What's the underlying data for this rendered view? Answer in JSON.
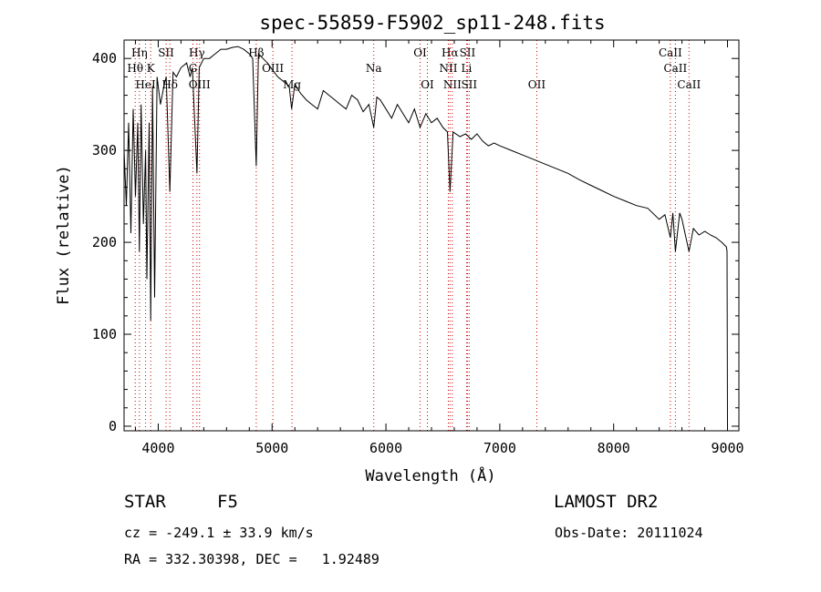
{
  "chart_data": {
    "type": "line",
    "title": "spec-55859-F5902_sp11-248.fits",
    "xlabel": "Wavelength (Å)",
    "ylabel": "Flux (relative)",
    "xlim": [
      3700,
      9100
    ],
    "ylim": [
      -5,
      420
    ],
    "xticks": [
      4000,
      5000,
      6000,
      7000,
      8000,
      9000
    ],
    "yticks": [
      0,
      100,
      200,
      300,
      400
    ],
    "grid": false,
    "line_color": "#000000",
    "marker_color": "#cc0000",
    "series": [
      {
        "x": [
          3700,
          3720,
          3740,
          3760,
          3780,
          3800,
          3820,
          3835,
          3850,
          3870,
          3889,
          3900,
          3920,
          3934,
          3950,
          3968,
          3990,
          4020,
          4050,
          4070,
          4102,
          4130,
          4160,
          4200,
          4250,
          4280,
          4300,
          4340,
          4360,
          4400,
          4450,
          4500,
          4550,
          4600,
          4650,
          4700,
          4750,
          4800,
          4830,
          4861,
          4880,
          4920,
          4960,
          5000,
          5050,
          5100,
          5150,
          5172,
          5200,
          5250,
          5300,
          5350,
          5400,
          5450,
          5500,
          5550,
          5600,
          5650,
          5700,
          5750,
          5800,
          5850,
          5893,
          5920,
          5950,
          6000,
          6050,
          6100,
          6150,
          6200,
          6250,
          6300,
          6350,
          6400,
          6450,
          6500,
          6540,
          6563,
          6590,
          6650,
          6700,
          6750,
          6800,
          6850,
          6900,
          6950,
          7000,
          7100,
          7200,
          7300,
          7400,
          7500,
          7600,
          7700,
          7800,
          7900,
          8000,
          8100,
          8200,
          8300,
          8400,
          8450,
          8498,
          8520,
          8542,
          8580,
          8600,
          8662,
          8700,
          8750,
          8800,
          8850,
          8900,
          8950,
          8990,
          8996,
          9000
        ],
        "y": [
          300,
          240,
          330,
          210,
          345,
          250,
          330,
          190,
          350,
          220,
          300,
          160,
          330,
          115,
          370,
          140,
          380,
          350,
          370,
          380,
          255,
          385,
          380,
          390,
          395,
          380,
          390,
          275,
          390,
          400,
          400,
          405,
          410,
          410,
          412,
          413,
          410,
          405,
          400,
          283,
          405,
          400,
          395,
          388,
          380,
          375,
          370,
          345,
          372,
          362,
          355,
          350,
          345,
          365,
          360,
          355,
          350,
          345,
          360,
          355,
          342,
          350,
          325,
          358,
          355,
          345,
          335,
          350,
          340,
          330,
          345,
          325,
          340,
          330,
          335,
          325,
          320,
          255,
          320,
          315,
          318,
          312,
          318,
          310,
          305,
          308,
          305,
          300,
          295,
          290,
          285,
          280,
          275,
          268,
          262,
          256,
          250,
          245,
          240,
          237,
          225,
          230,
          205,
          232,
          190,
          232,
          225,
          190,
          215,
          208,
          212,
          208,
          205,
          200,
          195,
          190,
          0
        ]
      }
    ],
    "line_markers": [
      {
        "label": "Hη",
        "x": 3835,
        "row": 1
      },
      {
        "label": "Hθ",
        "x": 3798,
        "row": 2
      },
      {
        "label": "K",
        "x": 3934,
        "row": 2
      },
      {
        "label": "HeI",
        "x": 3889,
        "row": 3
      },
      {
        "label": "SII",
        "x": 4069,
        "row": 1
      },
      {
        "label": "Hδ",
        "x": 4102,
        "row": 3
      },
      {
        "label": "Hγ",
        "x": 4340,
        "row": 1
      },
      {
        "label": "G",
        "x": 4305,
        "row": 2
      },
      {
        "label": "OIII",
        "x": 4363,
        "row": 3
      },
      {
        "label": "Hβ",
        "x": 4861,
        "row": 1
      },
      {
        "label": "OIII",
        "x": 5007,
        "row": 2
      },
      {
        "label": "Mg",
        "x": 5175,
        "row": 3
      },
      {
        "label": "Na",
        "x": 5893,
        "row": 2
      },
      {
        "label": "OI",
        "x": 6300,
        "row": 1
      },
      {
        "label": "OI",
        "x": 6364,
        "row": 3
      },
      {
        "label": "Hα",
        "x": 6563,
        "row": 1
      },
      {
        "label": "SII",
        "x": 6716,
        "row": 1
      },
      {
        "label": "NII",
        "x": 6548,
        "row": 2
      },
      {
        "label": "Li",
        "x": 6708,
        "row": 2
      },
      {
        "label": "NII",
        "x": 6583,
        "row": 3
      },
      {
        "label": "SII",
        "x": 6731,
        "row": 3
      },
      {
        "label": "OII",
        "x": 7325,
        "row": 3
      },
      {
        "label": "CaII",
        "x": 8498,
        "row": 1
      },
      {
        "label": "CaII",
        "x": 8542,
        "row": 2
      },
      {
        "label": "CaII",
        "x": 8662,
        "row": 3
      }
    ]
  },
  "footer": {
    "object_class": "STAR",
    "subclass": "F5",
    "survey": "LAMOST DR2",
    "redshift": "cz = -249.1 ± 33.9 km/s",
    "obs_date": "Obs-Date: 20111024",
    "coords": "RA = 332.30398, DEC =   1.92489"
  }
}
